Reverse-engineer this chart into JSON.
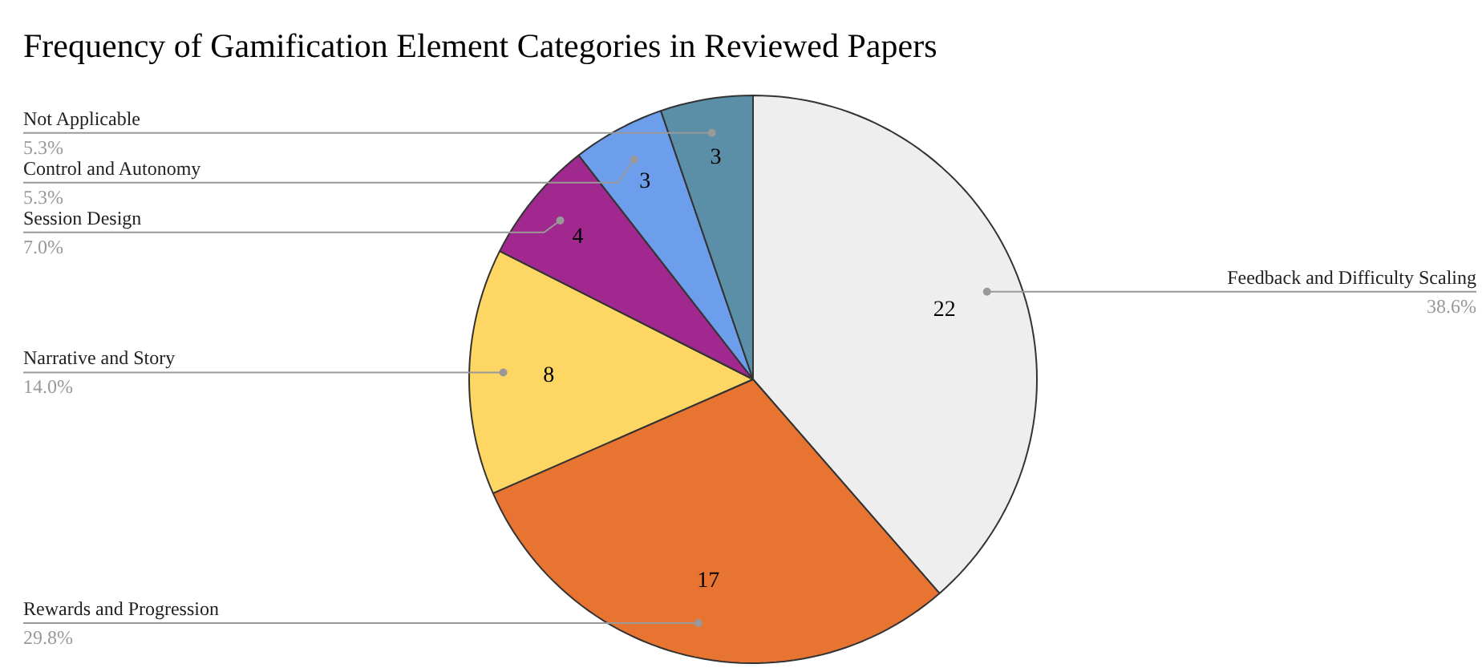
{
  "chart_data": {
    "type": "pie",
    "title": "Frequency of Gamification Element Categories in Reviewed Papers",
    "categories": [
      "Feedback and Difficulty Scaling",
      "Rewards and Progression",
      "Narrative and Story",
      "Session Design",
      "Control and Autonomy",
      "Not Applicable"
    ],
    "values": [
      22,
      17,
      8,
      4,
      3,
      3
    ],
    "colors": [
      "#eeeeee",
      "#e87432",
      "#fdd663",
      "#a0288f",
      "#6d9eeb",
      "#5b8fa8"
    ],
    "data_labels": true,
    "annotations": [
      "38.6%",
      "29.8%",
      "14.0%",
      "7.0%",
      "5.3%",
      "5.3%"
    ]
  }
}
